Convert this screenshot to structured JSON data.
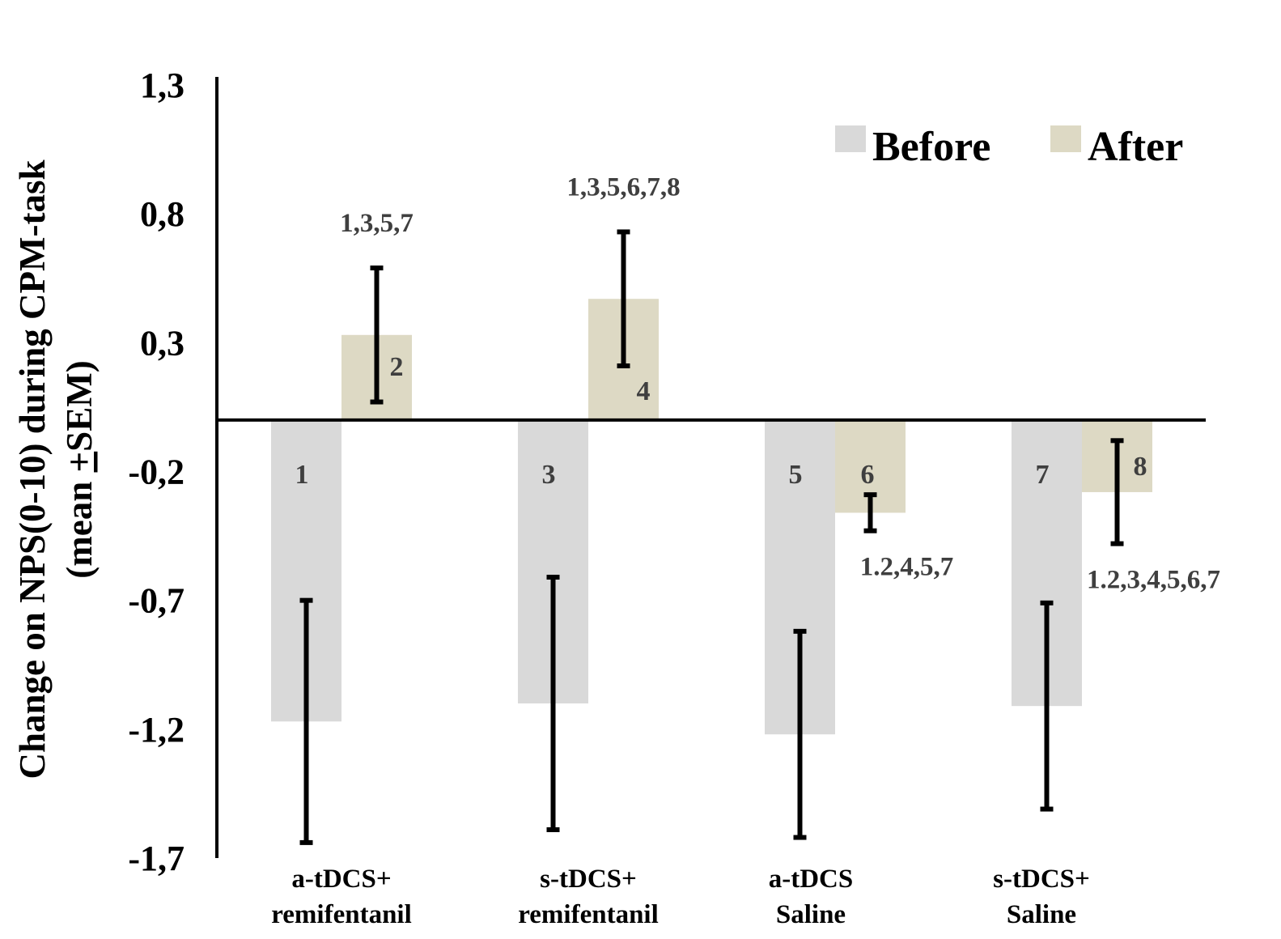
{
  "chart_data": {
    "type": "bar",
    "title": "",
    "ylabel_line1": "Change  on NPS(0-10) during CPM-task",
    "ylabel_line2_pre": "(mean ",
    "ylabel_pm": "+",
    "ylabel_line2_post": "SEM)",
    "xlabel": "",
    "ylim": [
      -1.7,
      1.3
    ],
    "yticks": [
      1.3,
      0.8,
      0.3,
      -0.2,
      -0.7,
      -1.2,
      -1.7
    ],
    "ytick_labels": [
      "1,3",
      "0,8",
      "0,3",
      "-0,2",
      "-0,7",
      "-1,2",
      "-1,7"
    ],
    "categories": [
      {
        "line1": "a-tDCS+",
        "line2": "remifentanil"
      },
      {
        "line1": "s-tDCS+",
        "line2": "remifentanil"
      },
      {
        "line1": "a-tDCS",
        "line2": "Saline"
      },
      {
        "line1": "s-tDCS+",
        "line2": "Saline"
      }
    ],
    "legend_position": "top-right",
    "series": [
      {
        "name": "Before",
        "color": "#d9d9d9",
        "values": [
          -1.17,
          -1.1,
          -1.22,
          -1.11
        ],
        "sem": [
          0.47,
          0.49,
          0.4,
          0.4
        ],
        "bar_labels": [
          "1",
          "3",
          "5",
          "7"
        ],
        "annotations": [
          "",
          "",
          "",
          ""
        ]
      },
      {
        "name": "After",
        "color": "#ddd9c4",
        "values": [
          0.33,
          0.47,
          -0.36,
          -0.28
        ],
        "sem": [
          0.26,
          0.26,
          0.07,
          0.2
        ],
        "bar_labels": [
          "2",
          "4",
          "6",
          "8"
        ],
        "annotations": [
          "1,3,5,7",
          "1,3,5,6,7,8",
          "1.2,4,5,7",
          "1.2,3,4,5,6,7"
        ]
      }
    ],
    "grid": false
  }
}
